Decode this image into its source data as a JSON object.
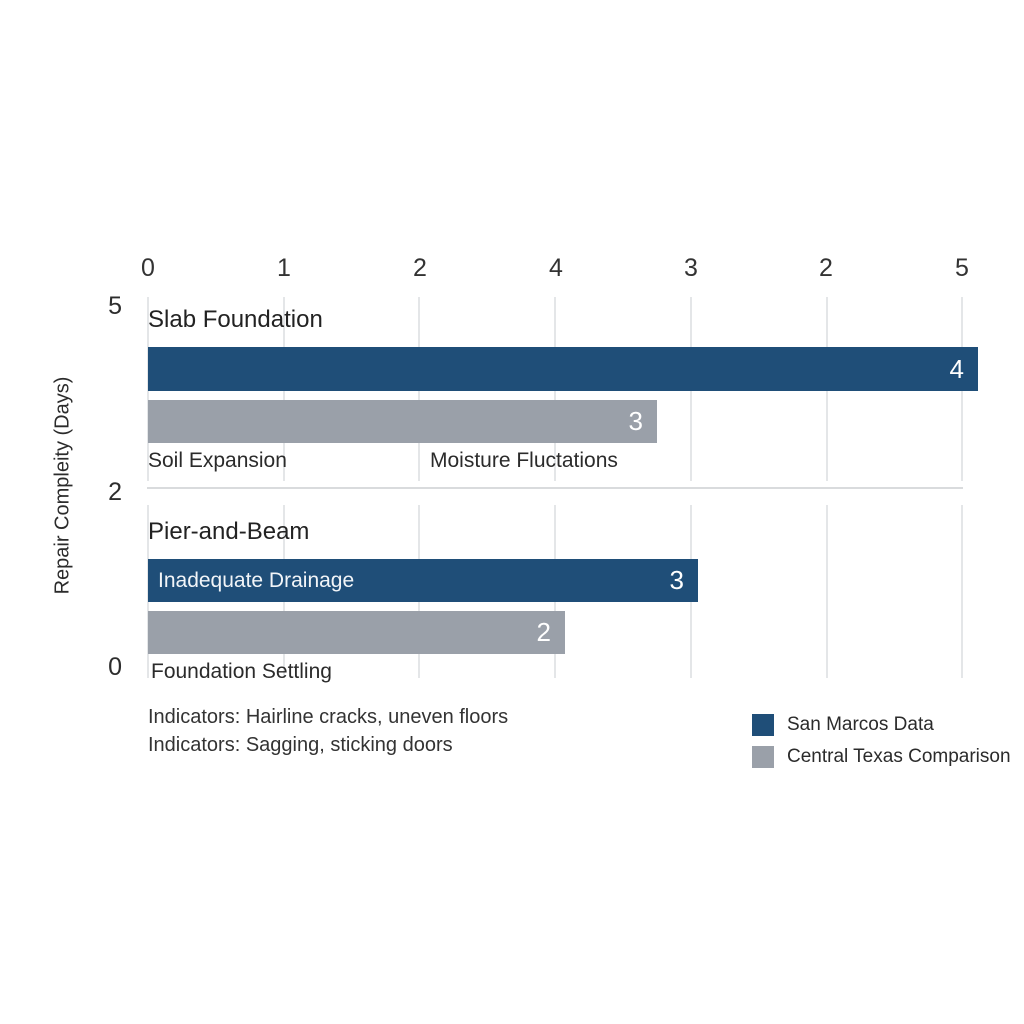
{
  "chart": {
    "y_axis_label": "Repair Compleity (Days)",
    "top_ticks": [
      "0",
      "1",
      "2",
      "4",
      "3",
      "2",
      "5"
    ],
    "left_ticks": [
      "5",
      "2",
      "0"
    ],
    "groups": [
      {
        "title": "Slab Foundation",
        "bars": [
          {
            "series": "San Marcos Data",
            "value_label": "4",
            "inner_label": "",
            "length_units": 6.12
          },
          {
            "series": "Central Texas Comparison",
            "value_label": "3",
            "inner_label": "",
            "length_units": 3.75
          }
        ],
        "cause_labels": [
          "Soil Expansion",
          "Moisture Fluctations"
        ]
      },
      {
        "title": "Pier-and-Beam",
        "bars": [
          {
            "series": "San Marcos Data",
            "value_label": "3",
            "inner_label": "Inadequate Drainage",
            "length_units": 4.05
          },
          {
            "series": "Central Texas Comparison",
            "value_label": "2",
            "inner_label": "",
            "length_units": 3.07
          }
        ],
        "cause_labels": [
          "Foundation Settling"
        ]
      }
    ],
    "notes": [
      "Indicators: Hairline cracks, uneven floors",
      "Indicators: Sagging, sticking doors"
    ],
    "legend": [
      {
        "label": "San Marcos Data",
        "color": "#1f4e78"
      },
      {
        "label": "Central Texas Comparison",
        "color": "#9aa0a9"
      }
    ]
  },
  "chart_data": {
    "type": "bar",
    "orientation": "horizontal",
    "title": "",
    "ylabel": "Repair Compleity (Days)",
    "top_axis_tick_labels": [
      "0",
      "1",
      "2",
      "4",
      "3",
      "2",
      "5"
    ],
    "left_axis_tick_labels": [
      "5",
      "2",
      "0"
    ],
    "categories": [
      "Slab Foundation",
      "Pier-and-Beam"
    ],
    "series": [
      {
        "name": "San Marcos Data",
        "color": "#1f4e78",
        "values": [
          4,
          3
        ],
        "bar_length_axis_units": [
          6.12,
          4.05
        ]
      },
      {
        "name": "Central Texas Comparison",
        "color": "#9aa0a9",
        "values": [
          3,
          2
        ],
        "bar_length_axis_units": [
          3.75,
          3.07
        ]
      }
    ],
    "annotations": [
      "Soil Expansion",
      "Moisture Fluctations",
      "Inadequate Drainage",
      "Foundation Settling",
      "Indicators: Hairline cracks, uneven floors",
      "Indicators: Sagging, sticking doors"
    ],
    "grid": true,
    "legend_position": "bottom-right"
  }
}
